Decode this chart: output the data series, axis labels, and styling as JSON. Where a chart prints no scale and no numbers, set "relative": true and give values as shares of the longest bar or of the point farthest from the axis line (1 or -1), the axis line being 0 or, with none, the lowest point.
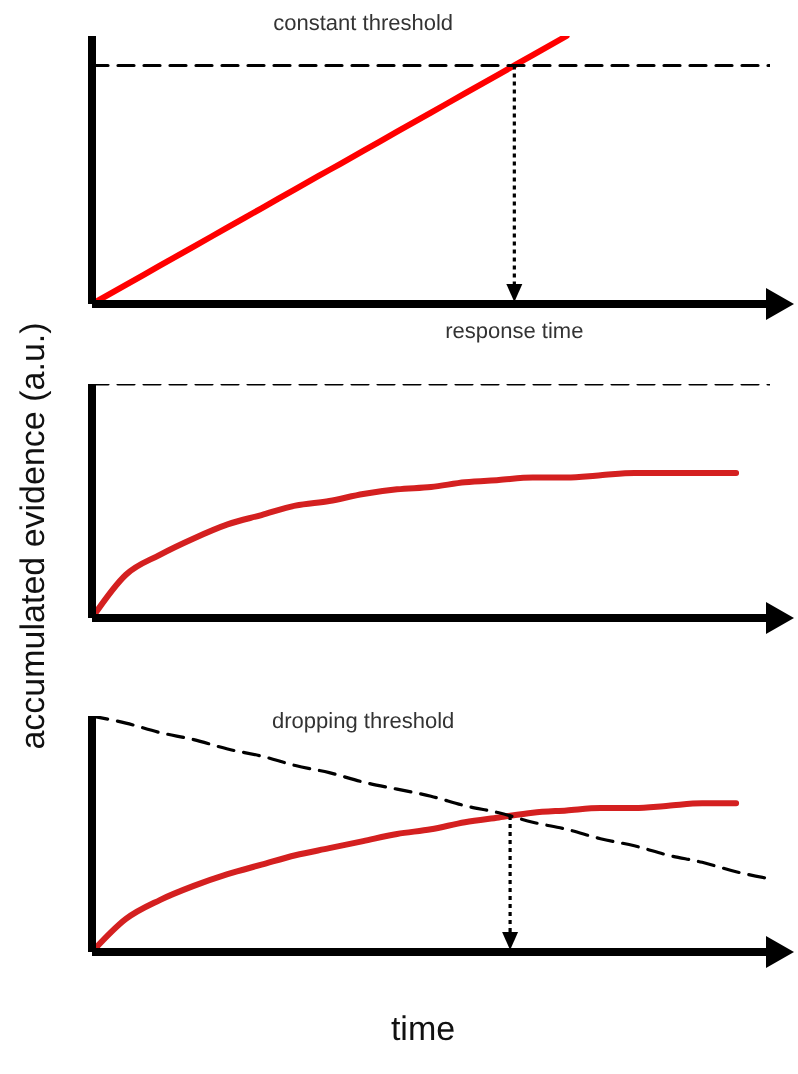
{
  "chart_data": [
    {
      "type": "line",
      "relative": true,
      "marker": "none",
      "categories": [
        null,
        null,
        null,
        null,
        null,
        null,
        null,
        null,
        null,
        null,
        null,
        null,
        null,
        null,
        null,
        null,
        null,
        null,
        null,
        null,
        null
      ],
      "series": [
        {
          "color": "#ff0000",
          "values": [
            0,
            0.071,
            0.143,
            0.214,
            0.286,
            0.357,
            0.429,
            0.5,
            0.571,
            0.643,
            0.714,
            0.786,
            0.857,
            0.929,
            1,
            null,
            null,
            null,
            null,
            null,
            null
          ]
        },
        {
          "name": "constant threshold",
          "color": "#000000",
          "line_style": "dashed",
          "values": [
            0.89,
            0.89,
            0.89,
            0.89,
            0.89,
            0.89,
            0.89,
            0.89,
            0.89,
            0.89,
            0.89,
            0.89,
            0.89,
            0.89,
            0.89,
            0.89,
            0.89,
            0.89,
            0.89,
            0.89,
            0.89
          ]
        }
      ],
      "annotations": [
        "response time"
      ]
    },
    {
      "type": "line",
      "relative": true,
      "marker": "none",
      "ylabel": "accumulated evidence (a.u.)",
      "categories": [
        null,
        null,
        null,
        null,
        null,
        null,
        null,
        null,
        null,
        null,
        null,
        null,
        null,
        null,
        null,
        null,
        null,
        null,
        null,
        null,
        null
      ],
      "series": [
        {
          "color": "#d42020",
          "values": [
            0,
            0.185,
            0.27,
            0.34,
            0.4,
            0.44,
            0.48,
            0.5,
            0.53,
            0.55,
            0.56,
            0.58,
            0.59,
            0.6,
            0.6,
            0.61,
            0.62,
            0.62,
            0.62,
            0.62,
            null
          ]
        },
        {
          "color": "#000000",
          "line_style": "dashed",
          "values": [
            1,
            1,
            1,
            1,
            1,
            1,
            1,
            1,
            1,
            1,
            1,
            1,
            1,
            1,
            1,
            1,
            1,
            1,
            1,
            1,
            1
          ]
        }
      ]
    },
    {
      "type": "line",
      "relative": true,
      "marker": "none",
      "xlabel": "time",
      "categories": [
        null,
        null,
        null,
        null,
        null,
        null,
        null,
        null,
        null,
        null,
        null,
        null,
        null,
        null,
        null,
        null,
        null,
        null,
        null,
        null,
        null
      ],
      "series": [
        {
          "color": "#d42020",
          "values": [
            0,
            0.14,
            0.22,
            0.28,
            0.33,
            0.37,
            0.41,
            0.44,
            0.47,
            0.5,
            0.52,
            0.55,
            0.57,
            0.59,
            0.6,
            0.61,
            0.61,
            0.62,
            0.63,
            0.63,
            null
          ]
        },
        {
          "name": "dropping threshold",
          "color": "#000000",
          "line_style": "dashed",
          "values": [
            1,
            0.97,
            0.93,
            0.9,
            0.86,
            0.83,
            0.79,
            0.76,
            0.72,
            0.69,
            0.66,
            0.62,
            0.59,
            0.55,
            0.52,
            0.48,
            0.45,
            0.41,
            0.38,
            0.34,
            0.31
          ]
        }
      ]
    }
  ]
}
